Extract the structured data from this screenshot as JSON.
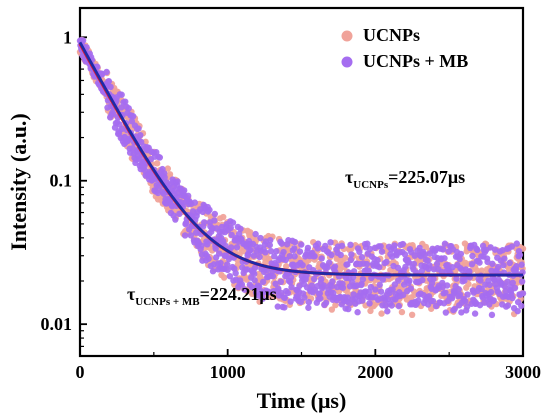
{
  "chart_data": {
    "type": "scatter",
    "xlabel": "Time (μs)",
    "ylabel": "Intensity (a.u.)",
    "xlim": [
      0,
      3000
    ],
    "ylim": [
      0.006,
      1.6
    ],
    "yscale": "log",
    "xticks": [
      0,
      1000,
      2000,
      3000
    ],
    "xtick_labels": [
      "0",
      "1000",
      "2000",
      "3000"
    ],
    "yticks": [
      1,
      0.1,
      0.01
    ],
    "ytick_labels": [
      "1",
      "0.1",
      "0.01"
    ],
    "legend_position": "top-right",
    "series": [
      {
        "name": "UCNPs",
        "color": "#f0a39a",
        "fit_color": "#e01b2b",
        "marker": "circle",
        "decay": {
          "A": 0.88,
          "tau": 225.07,
          "offset": 0.022
        }
      },
      {
        "name": "UCNPs + MB",
        "color": "#a56df0",
        "fit_color": "#1f2aa8",
        "marker": "circle",
        "decay": {
          "A": 0.9,
          "tau": 224.21,
          "offset": 0.022
        }
      }
    ],
    "annotations": [
      {
        "text": "τ",
        "subscript": "UCNPs",
        "value_text": "=225.07μs"
      },
      {
        "text": "τ",
        "subscript": "UCNPs + MB",
        "value_text": "=224.21μs"
      }
    ]
  }
}
